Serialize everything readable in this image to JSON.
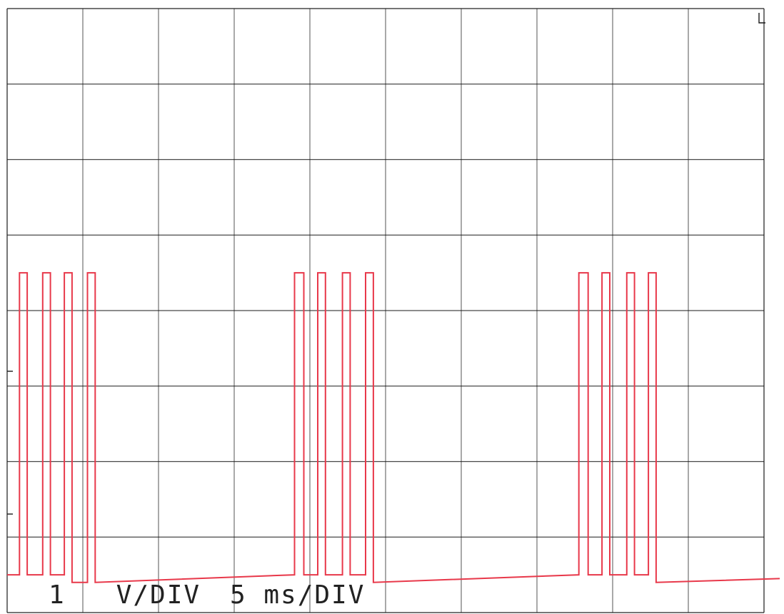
{
  "chart_data": {
    "type": "line",
    "title": "",
    "xlabel": "",
    "ylabel": "",
    "scale_labels": {
      "voltage": "1   V/DIV",
      "time": "5 ms/DIV"
    },
    "grid": true,
    "x_divisions": 10,
    "y_divisions": 8,
    "xlim_ms": [
      0,
      50
    ],
    "ylim_div": [
      0,
      8
    ],
    "colors": {
      "trace": "#e8384a",
      "grid": "#1a1a1a",
      "background": "#ffffff"
    },
    "series": [
      {
        "values_ms_v": [
          [
            0,
            0.5
          ],
          [
            0.8,
            0.5
          ],
          [
            0.8,
            4.5
          ],
          [
            1.3,
            4.5
          ],
          [
            1.3,
            0.5
          ],
          [
            2.3,
            0.5
          ],
          [
            2.3,
            4.5
          ],
          [
            2.8,
            4.5
          ],
          [
            2.8,
            0.5
          ],
          [
            3.7,
            0.5
          ],
          [
            3.7,
            4.5
          ],
          [
            4.2,
            4.5
          ],
          [
            4.2,
            0.4
          ],
          [
            5.2,
            0.4
          ],
          [
            5.2,
            4.5
          ],
          [
            5.7,
            4.5
          ],
          [
            5.7,
            0.4
          ],
          [
            18.6,
            0.5
          ],
          [
            18.6,
            4.5
          ],
          [
            19.2,
            4.5
          ],
          [
            19.2,
            0.5
          ],
          [
            20.1,
            0.5
          ],
          [
            20.1,
            4.5
          ],
          [
            20.6,
            4.5
          ],
          [
            20.6,
            0.5
          ],
          [
            21.7,
            0.5
          ],
          [
            21.7,
            4.5
          ],
          [
            22.2,
            4.5
          ],
          [
            22.2,
            0.5
          ],
          [
            23.2,
            0.5
          ],
          [
            23.2,
            4.5
          ],
          [
            23.7,
            4.5
          ],
          [
            23.7,
            0.4
          ],
          [
            37.0,
            0.5
          ],
          [
            37.0,
            4.5
          ],
          [
            37.6,
            4.5
          ],
          [
            37.6,
            0.5
          ],
          [
            38.5,
            0.5
          ],
          [
            38.5,
            4.5
          ],
          [
            39.0,
            4.5
          ],
          [
            39.0,
            0.5
          ],
          [
            40.1,
            0.5
          ],
          [
            40.1,
            4.5
          ],
          [
            40.6,
            4.5
          ],
          [
            40.6,
            0.5
          ],
          [
            41.5,
            0.5
          ],
          [
            41.5,
            4.5
          ],
          [
            42.0,
            4.5
          ],
          [
            42.0,
            0.4
          ],
          [
            50,
            0.45
          ]
        ]
      }
    ]
  }
}
